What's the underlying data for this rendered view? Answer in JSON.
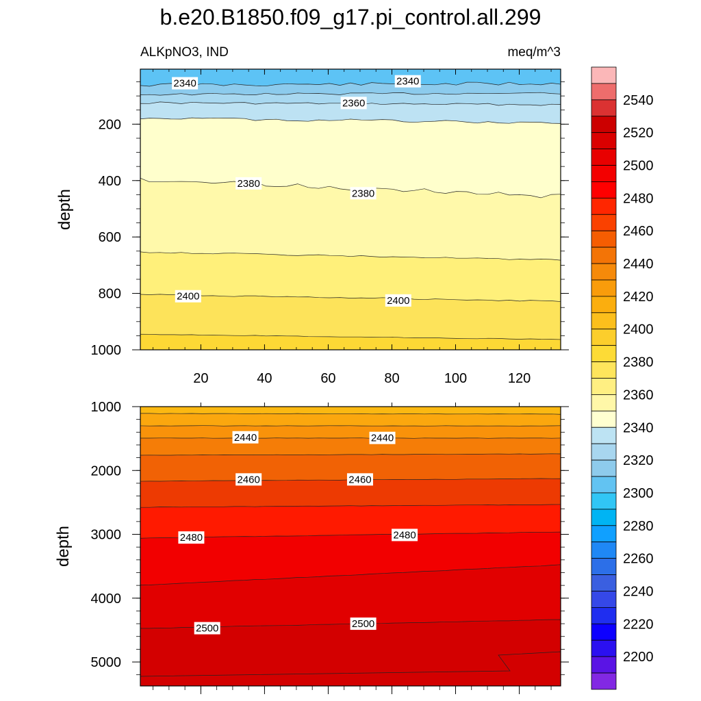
{
  "title": "b.e20.B1850.f09_g17.pi_control.all.299",
  "subtitle_left": "ALKpNO3, IND",
  "subtitle_right": "meq/m^3",
  "chart_data": [
    {
      "type": "contour",
      "panel": "upper",
      "ylabel": "depth",
      "xlabel": "",
      "xlim": [
        1,
        133
      ],
      "ylim": [
        1000,
        5
      ],
      "x_ticks": [
        20,
        40,
        60,
        80,
        100,
        120
      ],
      "y_ticks": [
        200,
        400,
        600,
        800,
        1000
      ],
      "contour_labels": [
        {
          "value": "2340",
          "x": 15,
          "y": 55
        },
        {
          "value": "2340",
          "x": 85,
          "y": 48
        },
        {
          "value": "2360",
          "x": 68,
          "y": 125
        },
        {
          "value": "2380",
          "x": 35,
          "y": 410
        },
        {
          "value": "2380",
          "x": 71,
          "y": 445
        },
        {
          "value": "2400",
          "x": 16,
          "y": 810
        },
        {
          "value": "2400",
          "x": 82,
          "y": 825
        }
      ],
      "band_colors": [
        "#5dc3f5",
        "#8ccbed",
        "#a8d8f0",
        "#bde2f3",
        "#ffffcc",
        "#fff9aa",
        "#fff07a",
        "#fde35a",
        "#fdd835",
        "#fcc92a"
      ]
    },
    {
      "type": "contour",
      "panel": "lower",
      "ylabel": "depth",
      "xlabel": "",
      "xlim": [
        1,
        133
      ],
      "ylim": [
        5375,
        1000
      ],
      "y_ticks": [
        1000,
        2000,
        3000,
        4000,
        5000
      ],
      "contour_labels": [
        {
          "value": "2440",
          "x": 34,
          "y": 1480
        },
        {
          "value": "2440",
          "x": 77,
          "y": 1490
        },
        {
          "value": "2460",
          "x": 35,
          "y": 2140
        },
        {
          "value": "2460",
          "x": 70,
          "y": 2140
        },
        {
          "value": "2480",
          "x": 17,
          "y": 3050
        },
        {
          "value": "2480",
          "x": 84,
          "y": 3010
        },
        {
          "value": "2500",
          "x": 22,
          "y": 4470
        },
        {
          "value": "2500",
          "x": 71,
          "y": 4400
        }
      ],
      "band_colors": [
        "#fbb812",
        "#fba70e",
        "#f9920a",
        "#f57d07",
        "#f16205",
        "#ed3a02",
        "#ff1a00",
        "#f20000",
        "#e10000",
        "#d30000"
      ]
    }
  ],
  "colorbar": {
    "labels": [
      "2540",
      "2520",
      "2500",
      "2480",
      "2460",
      "2440",
      "2420",
      "2400",
      "2380",
      "2360",
      "2340",
      "2320",
      "2300",
      "2280",
      "2260",
      "2240",
      "2220",
      "2200"
    ],
    "colors": [
      "#fbb7b8",
      "#ee6d6c",
      "#db3232",
      "#cc0000",
      "#da0000",
      "#e80000",
      "#f30000",
      "#ff0000",
      "#ff2600",
      "#fa4100",
      "#f55d02",
      "#f37406",
      "#f68a0a",
      "#f99c0b",
      "#fbae0e",
      "#fcbf1c",
      "#fcce2c",
      "#fddb36",
      "#fee55c",
      "#ffef82",
      "#fff7a8",
      "#ffffd0",
      "#bde3f3",
      "#a8d6ef",
      "#8ecbec",
      "#62c3f2",
      "#31c6f5",
      "#00b4f3",
      "#10a0ff",
      "#1f88f5",
      "#2c6fe8",
      "#3a5fe0",
      "#3548e8",
      "#1f2ef0",
      "#0d00ff",
      "#2b10f0",
      "#5a14e5",
      "#8228e3"
    ]
  }
}
